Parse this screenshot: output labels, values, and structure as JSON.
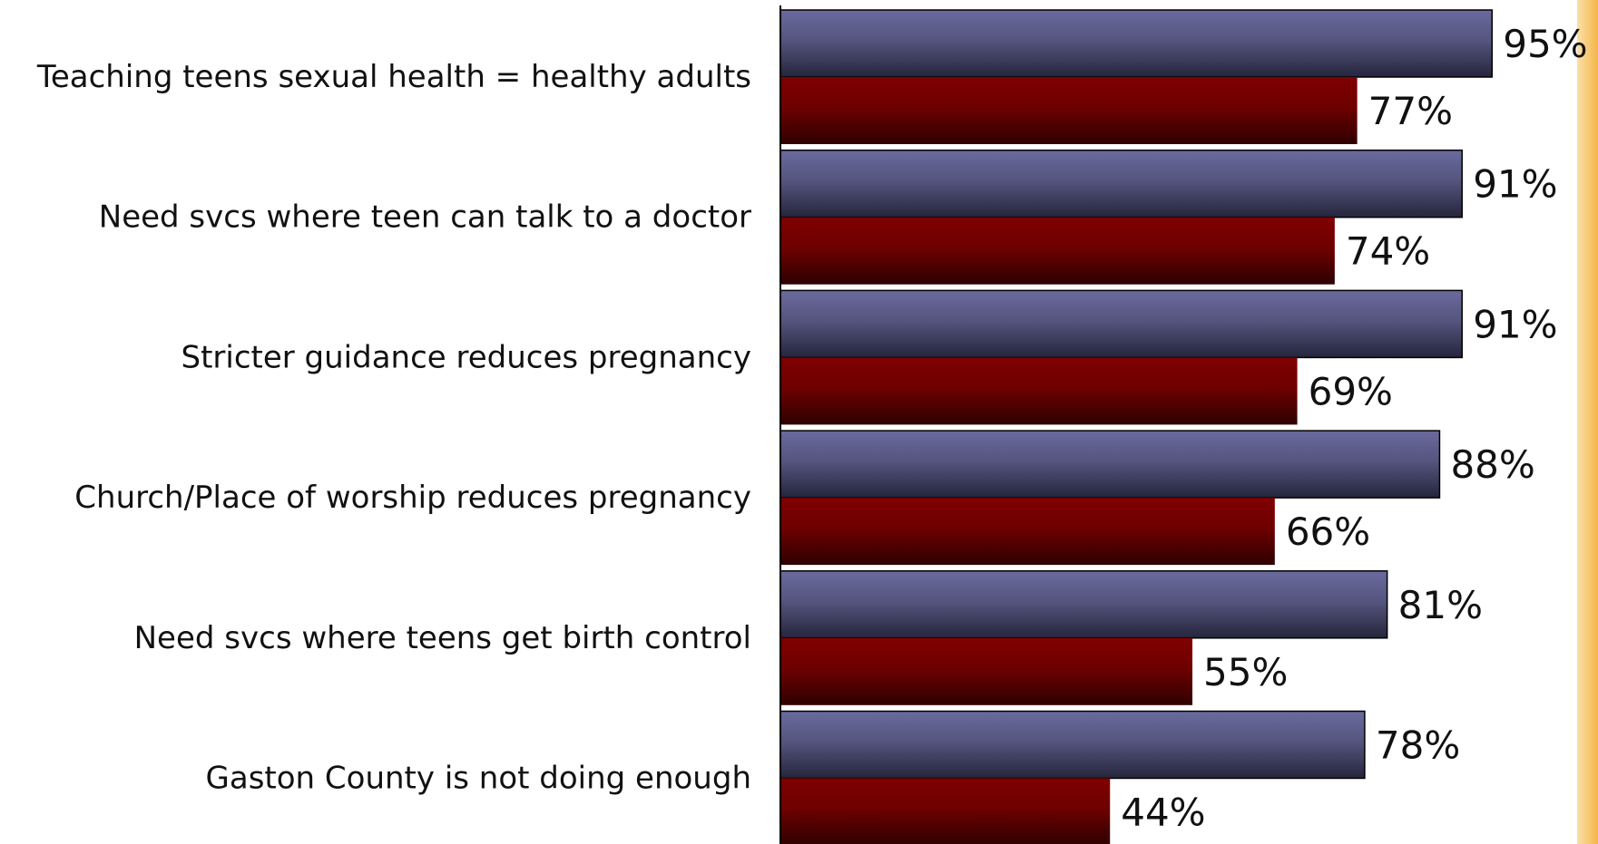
{
  "chart_data": {
    "type": "bar",
    "orientation": "horizontal",
    "categories": [
      "Teaching teens sexual health = healthy adults",
      "Need svcs where teen can talk to a doctor",
      "Stricter guidance reduces pregnancy",
      "Church/Place of worship reduces pregnancy",
      "Need svcs where teens get birth control",
      "Gaston County is not doing enough"
    ],
    "series": [
      {
        "values": [
          95,
          91,
          91,
          88,
          81,
          78
        ],
        "color": "#5f5f91",
        "labels": [
          "95%",
          "91%",
          "91%",
          "88%",
          "81%",
          "78%"
        ]
      },
      {
        "values": [
          77,
          74,
          69,
          66,
          55,
          44
        ],
        "color": "#7a0000",
        "labels": [
          "77%",
          "74%",
          "69%",
          "66%",
          "55%",
          "44%"
        ]
      }
    ],
    "xlim": [
      0,
      100
    ],
    "grid": false,
    "legend": "none",
    "data_labels": true
  }
}
